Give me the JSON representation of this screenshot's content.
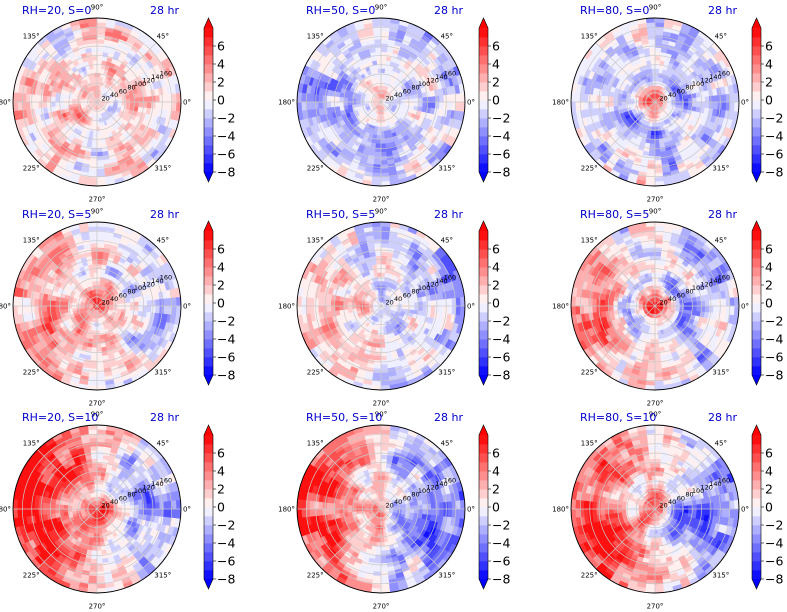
{
  "chart_data": {
    "type": "heatmap",
    "projection": "polar",
    "grid": true,
    "layout": {
      "rows": 3,
      "cols": 3
    },
    "colormap": {
      "name": "bwr",
      "range": [
        -8,
        8
      ],
      "levels": 16,
      "extend": "both",
      "ticks": [
        "6",
        "4",
        "2",
        "0",
        "−2",
        "−4",
        "−6",
        "−8"
      ]
    },
    "theta_ticks": [
      "90°",
      "45°",
      "0°",
      "315°",
      "270°",
      "225°",
      "180°",
      "135°"
    ],
    "r_ticks": [
      "20",
      "40",
      "60",
      "80",
      "100",
      "120",
      "140",
      "160"
    ],
    "r_range": [
      0,
      180
    ],
    "title_color": "#0000cc",
    "panels": [
      {
        "title": "RH=20, S=0",
        "time": "28 hr",
        "rh": 20,
        "s": 0,
        "mean_anomaly": 0.6,
        "center_anomaly": 1.5,
        "east_west_contrast": 0.0
      },
      {
        "title": "RH=50, S=0",
        "time": "28 hr",
        "rh": 50,
        "s": 0,
        "mean_anomaly": -1.2,
        "center_anomaly": 1.0,
        "east_west_contrast": 0.2
      },
      {
        "title": "RH=80, S=0",
        "time": "28 hr",
        "rh": 80,
        "s": 0,
        "mean_anomaly": -0.8,
        "center_anomaly": 7.5,
        "east_west_contrast": 0.0
      },
      {
        "title": "RH=20, S=5",
        "time": "28 hr",
        "rh": 20,
        "s": 5,
        "mean_anomaly": 0.8,
        "center_anomaly": 3.0,
        "east_west_contrast": -2.5
      },
      {
        "title": "RH=50, S=5",
        "time": "28 hr",
        "rh": 50,
        "s": 5,
        "mean_anomaly": -0.5,
        "center_anomaly": 1.0,
        "east_west_contrast": -1.5
      },
      {
        "title": "RH=80, S=5",
        "time": "28 hr",
        "rh": 80,
        "s": 5,
        "mean_anomaly": 0.0,
        "center_anomaly": 7.5,
        "east_west_contrast": -2.0
      },
      {
        "title": "RH=20, S=10",
        "time": "28 hr",
        "rh": 20,
        "s": 10,
        "mean_anomaly": 2.0,
        "center_anomaly": 6.0,
        "east_west_contrast": -5.0
      },
      {
        "title": "RH=50, S=10",
        "time": "28 hr",
        "rh": 50,
        "s": 10,
        "mean_anomaly": 0.5,
        "center_anomaly": 2.0,
        "east_west_contrast": -5.0
      },
      {
        "title": "RH=80, S=10",
        "time": "28 hr",
        "rh": 80,
        "s": 10,
        "mean_anomaly": 1.0,
        "center_anomaly": 7.5,
        "east_west_contrast": -4.5
      }
    ]
  }
}
